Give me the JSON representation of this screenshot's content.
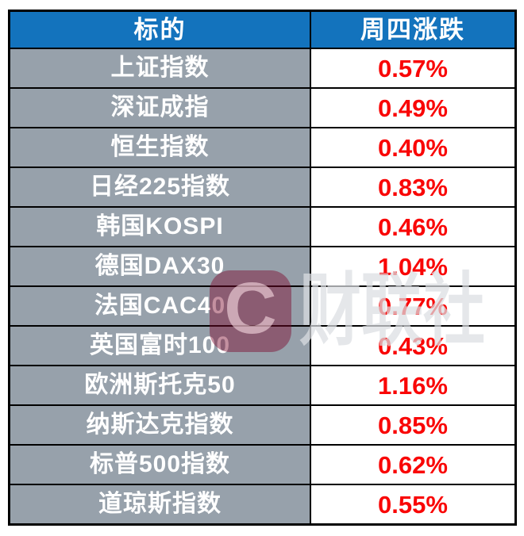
{
  "table": {
    "headers": [
      "标的",
      "周四涨跌"
    ],
    "rows": [
      {
        "name": "上证指数",
        "change": "0.57%"
      },
      {
        "name": "深证成指",
        "change": "0.49%"
      },
      {
        "name": "恒生指数",
        "change": "0.40%"
      },
      {
        "name": "日经225指数",
        "change": "0.83%"
      },
      {
        "name": "韩国KOSPI",
        "change": "0.46%"
      },
      {
        "name": "德国DAX30",
        "change": "1.04%"
      },
      {
        "name": "法国CAC40",
        "change": "0.77%"
      },
      {
        "name": "英国富时100",
        "change": "0.43%"
      },
      {
        "name": "欧洲斯托克50",
        "change": "1.16%"
      },
      {
        "name": "纳斯达克指数",
        "change": "0.85%"
      },
      {
        "name": "标普500指数",
        "change": "0.62%"
      },
      {
        "name": "道琼斯指数",
        "change": "0.55%"
      }
    ]
  },
  "watermark": {
    "logo_letter": "C",
    "text": "财联社"
  },
  "colors": {
    "header_bg": "#1373BD",
    "row_bg": "#97A1AB",
    "value_red": "#F90606",
    "border": "#000000",
    "header_text": "#FFFFFF",
    "row_text": "#FFFFFF",
    "cell_bg": "#FFFFFF"
  },
  "chart_data": {
    "type": "table",
    "title": "",
    "columns": [
      "标的",
      "周四涨跌"
    ],
    "categories": [
      "上证指数",
      "深证成指",
      "恒生指数",
      "日经225指数",
      "韩国KOSPI",
      "德国DAX30",
      "法国CAC40",
      "英国富时100",
      "欧洲斯托克50",
      "纳斯达克指数",
      "标普500指数",
      "道琼斯指数"
    ],
    "values_pct": [
      0.57,
      0.49,
      0.4,
      0.83,
      0.46,
      1.04,
      0.77,
      0.43,
      1.16,
      0.85,
      0.62,
      0.55
    ],
    "value_labels": [
      "0.57%",
      "0.49%",
      "0.40%",
      "0.83%",
      "0.46%",
      "1.04%",
      "0.77%",
      "0.43%",
      "1.16%",
      "0.85%",
      "0.62%",
      "0.55%"
    ]
  }
}
